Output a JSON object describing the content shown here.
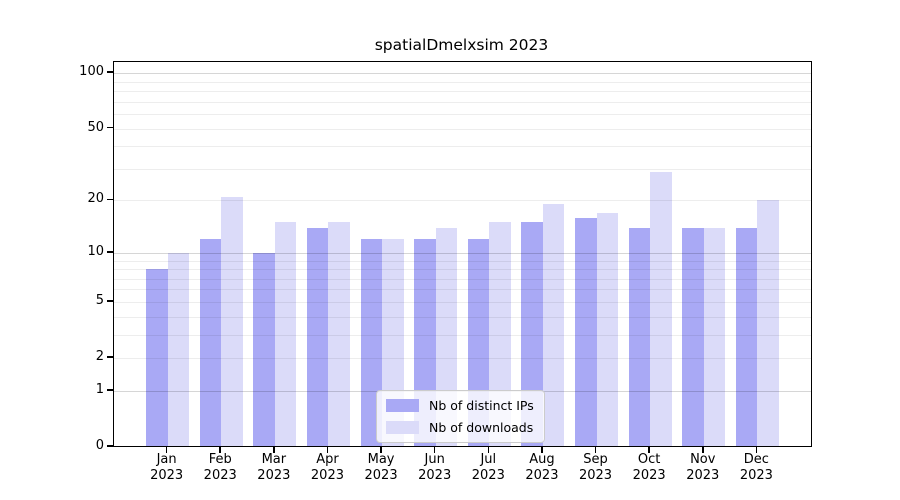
{
  "chart_data": {
    "type": "bar",
    "title": "spatialDmelxsim 2023",
    "categories": [
      "Jan",
      "Feb",
      "Mar",
      "Apr",
      "May",
      "Jun",
      "Jul",
      "Aug",
      "Sep",
      "Oct",
      "Nov",
      "Dec"
    ],
    "category_year": "2023",
    "series": [
      {
        "name": "Nb of distinct IPs",
        "color": "#a9a9f5",
        "values": [
          8,
          12,
          10,
          14,
          12,
          12,
          12,
          15,
          16,
          14,
          14,
          14
        ]
      },
      {
        "name": "Nb of downloads",
        "color": "#dbdbf9",
        "values": [
          10,
          21,
          15,
          15,
          12,
          14,
          15,
          19,
          17,
          29,
          14,
          20
        ]
      }
    ],
    "y_scale": "log1p",
    "y_ticks": [
      0,
      1,
      2,
      5,
      10,
      20,
      50,
      100
    ],
    "ylim": [
      0,
      115
    ],
    "grid": "horizontal",
    "legend_position": "lower center",
    "colors": {
      "axis": "#000000",
      "grid_major": "#cccccc",
      "grid_minor": "#ececec",
      "background": "#ffffff"
    }
  }
}
